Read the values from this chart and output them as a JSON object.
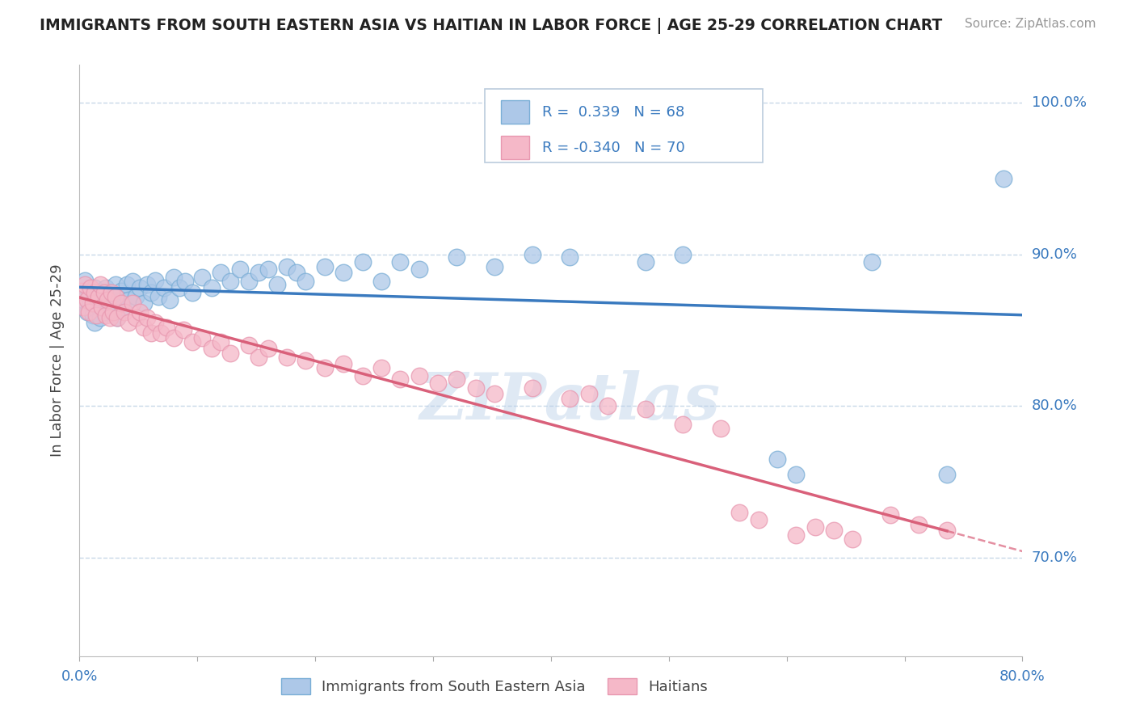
{
  "title": "IMMIGRANTS FROM SOUTH EASTERN ASIA VS HAITIAN IN LABOR FORCE | AGE 25-29 CORRELATION CHART",
  "source": "Source: ZipAtlas.com",
  "ylabel": "In Labor Force | Age 25-29",
  "xmin": 0.0,
  "xmax": 0.5,
  "ymin": 0.635,
  "ymax": 1.025,
  "ytick_labels": [
    "70.0%",
    "80.0%",
    "90.0%",
    "100.0%"
  ],
  "ytick_values": [
    0.7,
    0.8,
    0.9,
    1.0
  ],
  "r_blue": 0.339,
  "n_blue": 68,
  "r_pink": -0.34,
  "n_pink": 70,
  "blue_color": "#adc8e8",
  "blue_edge_color": "#7aaed6",
  "blue_line_color": "#3a7abf",
  "pink_color": "#f5b8c8",
  "pink_edge_color": "#e898b0",
  "pink_line_color": "#d9607a",
  "blue_scatter": [
    [
      0.002,
      0.87
    ],
    [
      0.003,
      0.883
    ],
    [
      0.004,
      0.862
    ],
    [
      0.005,
      0.875
    ],
    [
      0.006,
      0.868
    ],
    [
      0.007,
      0.86
    ],
    [
      0.008,
      0.878
    ],
    [
      0.008,
      0.855
    ],
    [
      0.009,
      0.872
    ],
    [
      0.01,
      0.865
    ],
    [
      0.011,
      0.858
    ],
    [
      0.012,
      0.873
    ],
    [
      0.013,
      0.862
    ],
    [
      0.014,
      0.878
    ],
    [
      0.015,
      0.868
    ],
    [
      0.016,
      0.875
    ],
    [
      0.017,
      0.865
    ],
    [
      0.018,
      0.872
    ],
    [
      0.019,
      0.88
    ],
    [
      0.02,
      0.858
    ],
    [
      0.021,
      0.869
    ],
    [
      0.022,
      0.876
    ],
    [
      0.023,
      0.865
    ],
    [
      0.025,
      0.88
    ],
    [
      0.026,
      0.87
    ],
    [
      0.028,
      0.882
    ],
    [
      0.03,
      0.872
    ],
    [
      0.032,
      0.878
    ],
    [
      0.034,
      0.868
    ],
    [
      0.036,
      0.88
    ],
    [
      0.038,
      0.875
    ],
    [
      0.04,
      0.883
    ],
    [
      0.042,
      0.872
    ],
    [
      0.045,
      0.878
    ],
    [
      0.048,
      0.87
    ],
    [
      0.05,
      0.885
    ],
    [
      0.053,
      0.878
    ],
    [
      0.056,
      0.882
    ],
    [
      0.06,
      0.875
    ],
    [
      0.065,
      0.885
    ],
    [
      0.07,
      0.878
    ],
    [
      0.075,
      0.888
    ],
    [
      0.08,
      0.882
    ],
    [
      0.085,
      0.89
    ],
    [
      0.09,
      0.882
    ],
    [
      0.095,
      0.888
    ],
    [
      0.1,
      0.89
    ],
    [
      0.105,
      0.88
    ],
    [
      0.11,
      0.892
    ],
    [
      0.115,
      0.888
    ],
    [
      0.12,
      0.882
    ],
    [
      0.13,
      0.892
    ],
    [
      0.14,
      0.888
    ],
    [
      0.15,
      0.895
    ],
    [
      0.16,
      0.882
    ],
    [
      0.17,
      0.895
    ],
    [
      0.18,
      0.89
    ],
    [
      0.2,
      0.898
    ],
    [
      0.22,
      0.892
    ],
    [
      0.24,
      0.9
    ],
    [
      0.26,
      0.898
    ],
    [
      0.3,
      0.895
    ],
    [
      0.32,
      0.9
    ],
    [
      0.37,
      0.765
    ],
    [
      0.38,
      0.755
    ],
    [
      0.42,
      0.895
    ],
    [
      0.46,
      0.755
    ],
    [
      0.49,
      0.95
    ]
  ],
  "pink_scatter": [
    [
      0.001,
      0.876
    ],
    [
      0.002,
      0.865
    ],
    [
      0.003,
      0.88
    ],
    [
      0.004,
      0.87
    ],
    [
      0.005,
      0.862
    ],
    [
      0.006,
      0.878
    ],
    [
      0.007,
      0.868
    ],
    [
      0.008,
      0.875
    ],
    [
      0.009,
      0.86
    ],
    [
      0.01,
      0.872
    ],
    [
      0.011,
      0.88
    ],
    [
      0.012,
      0.865
    ],
    [
      0.013,
      0.875
    ],
    [
      0.014,
      0.86
    ],
    [
      0.015,
      0.87
    ],
    [
      0.016,
      0.858
    ],
    [
      0.017,
      0.875
    ],
    [
      0.018,
      0.862
    ],
    [
      0.019,
      0.872
    ],
    [
      0.02,
      0.858
    ],
    [
      0.022,
      0.868
    ],
    [
      0.024,
      0.862
    ],
    [
      0.026,
      0.855
    ],
    [
      0.028,
      0.868
    ],
    [
      0.03,
      0.858
    ],
    [
      0.032,
      0.862
    ],
    [
      0.034,
      0.852
    ],
    [
      0.036,
      0.858
    ],
    [
      0.038,
      0.848
    ],
    [
      0.04,
      0.855
    ],
    [
      0.043,
      0.848
    ],
    [
      0.046,
      0.852
    ],
    [
      0.05,
      0.845
    ],
    [
      0.055,
      0.85
    ],
    [
      0.06,
      0.842
    ],
    [
      0.065,
      0.845
    ],
    [
      0.07,
      0.838
    ],
    [
      0.075,
      0.842
    ],
    [
      0.08,
      0.835
    ],
    [
      0.09,
      0.84
    ],
    [
      0.095,
      0.832
    ],
    [
      0.1,
      0.838
    ],
    [
      0.11,
      0.832
    ],
    [
      0.12,
      0.83
    ],
    [
      0.13,
      0.825
    ],
    [
      0.14,
      0.828
    ],
    [
      0.15,
      0.82
    ],
    [
      0.16,
      0.825
    ],
    [
      0.17,
      0.818
    ],
    [
      0.18,
      0.82
    ],
    [
      0.19,
      0.815
    ],
    [
      0.2,
      0.818
    ],
    [
      0.21,
      0.812
    ],
    [
      0.22,
      0.808
    ],
    [
      0.24,
      0.812
    ],
    [
      0.26,
      0.805
    ],
    [
      0.27,
      0.808
    ],
    [
      0.28,
      0.8
    ],
    [
      0.3,
      0.798
    ],
    [
      0.32,
      0.788
    ],
    [
      0.34,
      0.785
    ],
    [
      0.35,
      0.73
    ],
    [
      0.36,
      0.725
    ],
    [
      0.38,
      0.715
    ],
    [
      0.39,
      0.72
    ],
    [
      0.4,
      0.718
    ],
    [
      0.41,
      0.712
    ],
    [
      0.43,
      0.728
    ],
    [
      0.445,
      0.722
    ],
    [
      0.46,
      0.718
    ]
  ],
  "watermark": "ZIPatlas",
  "background_color": "#ffffff",
  "grid_color": "#c8d8e8"
}
